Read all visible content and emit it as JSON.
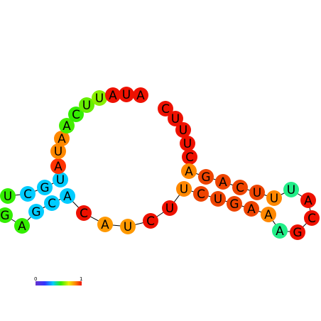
{
  "nucleotides": [
    {
      "base": "U",
      "color": "#33ee00"
    },
    {
      "base": "C",
      "color": "#00ccff"
    },
    {
      "base": "G",
      "color": "#00ccff"
    },
    {
      "base": "U",
      "color": "#00ccff"
    },
    {
      "base": "A",
      "color": "#ff3300"
    },
    {
      "base": "U",
      "color": "#ff8800"
    },
    {
      "base": "A",
      "color": "#ff8800"
    },
    {
      "base": "A",
      "color": "#44ee00"
    },
    {
      "base": "C",
      "color": "#33ee00"
    },
    {
      "base": "U",
      "color": "#66ee00"
    },
    {
      "base": "U",
      "color": "#88ee00"
    },
    {
      "base": "A",
      "color": "#ee1100"
    },
    {
      "base": "U",
      "color": "#ee1100"
    },
    {
      "base": "A",
      "color": "#ee1100"
    },
    {
      "base": "C",
      "color": "#ee1100"
    },
    {
      "base": "U",
      "color": "#ee1100"
    },
    {
      "base": "U",
      "color": "#ee1100"
    },
    {
      "base": "U",
      "color": "#ee1100"
    },
    {
      "base": "C",
      "color": "#ee1100"
    },
    {
      "base": "A",
      "color": "#ff8800"
    },
    {
      "base": "G",
      "color": "#ee4400"
    },
    {
      "base": "A",
      "color": "#ee4400"
    },
    {
      "base": "C",
      "color": "#ee4400"
    },
    {
      "base": "U",
      "color": "#ee4400"
    },
    {
      "base": "U",
      "color": "#ff8800"
    },
    {
      "base": "U",
      "color": "#22ee88"
    },
    {
      "base": "A",
      "color": "#ee1100"
    },
    {
      "base": "C",
      "color": "#ee1100"
    },
    {
      "base": "G",
      "color": "#ee1100"
    },
    {
      "base": "A",
      "color": "#22ee88"
    },
    {
      "base": "A",
      "color": "#ff8800"
    },
    {
      "base": "A",
      "color": "#ee4400"
    },
    {
      "base": "G",
      "color": "#ee4400"
    },
    {
      "base": "U",
      "color": "#ee4400"
    },
    {
      "base": "C",
      "color": "#ee4400"
    },
    {
      "base": "U",
      "color": "#ff8800"
    },
    {
      "base": "U",
      "color": "#ee1100"
    },
    {
      "base": "C",
      "color": "#ee1100"
    },
    {
      "base": "U",
      "color": "#ff9900"
    },
    {
      "base": "A",
      "color": "#ff9900"
    },
    {
      "base": "C",
      "color": "#ee1100"
    },
    {
      "base": "A",
      "color": "#00ccff"
    },
    {
      "base": "C",
      "color": "#00ccff"
    },
    {
      "base": "G",
      "color": "#00ccff"
    },
    {
      "base": "A",
      "color": "#33ee00"
    },
    {
      "base": "G",
      "color": "#33ee00"
    }
  ],
  "legend": {
    "min_label": "0",
    "max_label": "1"
  }
}
